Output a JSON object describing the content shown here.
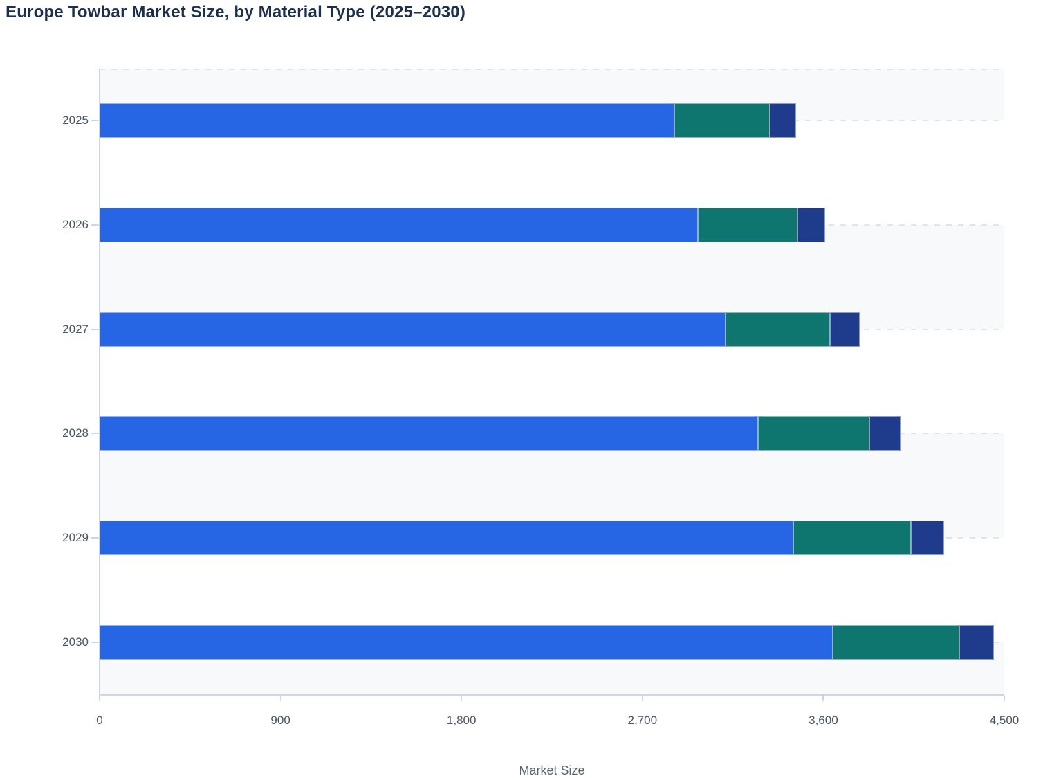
{
  "title": "Europe Towbar Market Size, by Material Type (2025–2030)",
  "colors": {
    "blue": "#2666E5",
    "teal": "#0E766E",
    "navy": "#1F3B8C",
    "zebra_band": "#F8F9FB",
    "axis_line": "#CCD6EB",
    "gridline": "#E1E4E9",
    "title_text": "#1D2F4E",
    "tick_text": "#4A5565",
    "axis_title_text": "#5A6472"
  },
  "chart_data": {
    "type": "bar",
    "orientation": "horizontal",
    "stacked": true,
    "title": "Europe Towbar Market Size, by Material Type (2025–2030)",
    "categories": [
      "2025",
      "2026",
      "2027",
      "2028",
      "2029",
      "2030"
    ],
    "series": [
      {
        "name": "segment-blue",
        "color_key": "blue",
        "values": [
          2860,
          2977,
          3115,
          3274,
          3451,
          3648
        ]
      },
      {
        "name": "segment-teal",
        "color_key": "teal",
        "values": [
          474,
          493,
          518,
          555,
          584,
          628
        ]
      },
      {
        "name": "segment-navy",
        "color_key": "navy",
        "values": [
          131,
          140,
          147,
          154,
          166,
          174
        ]
      }
    ],
    "totals": [
      3465,
      3610,
      3780,
      3983,
      4201,
      4450
    ],
    "xlabel": "Market Size",
    "ylabel": "",
    "xlim": [
      0,
      4500
    ],
    "x_ticks": [
      0,
      900,
      1800,
      2700,
      3600,
      4500
    ],
    "x_tick_labels": [
      "0",
      "900",
      "1,800",
      "2,700",
      "3,600",
      "4,500"
    ],
    "grid": "dashed horizontal lines at category centers and plot top",
    "legend": "none",
    "zebra_banding": "alternating light bands with boundaries at category centers"
  }
}
